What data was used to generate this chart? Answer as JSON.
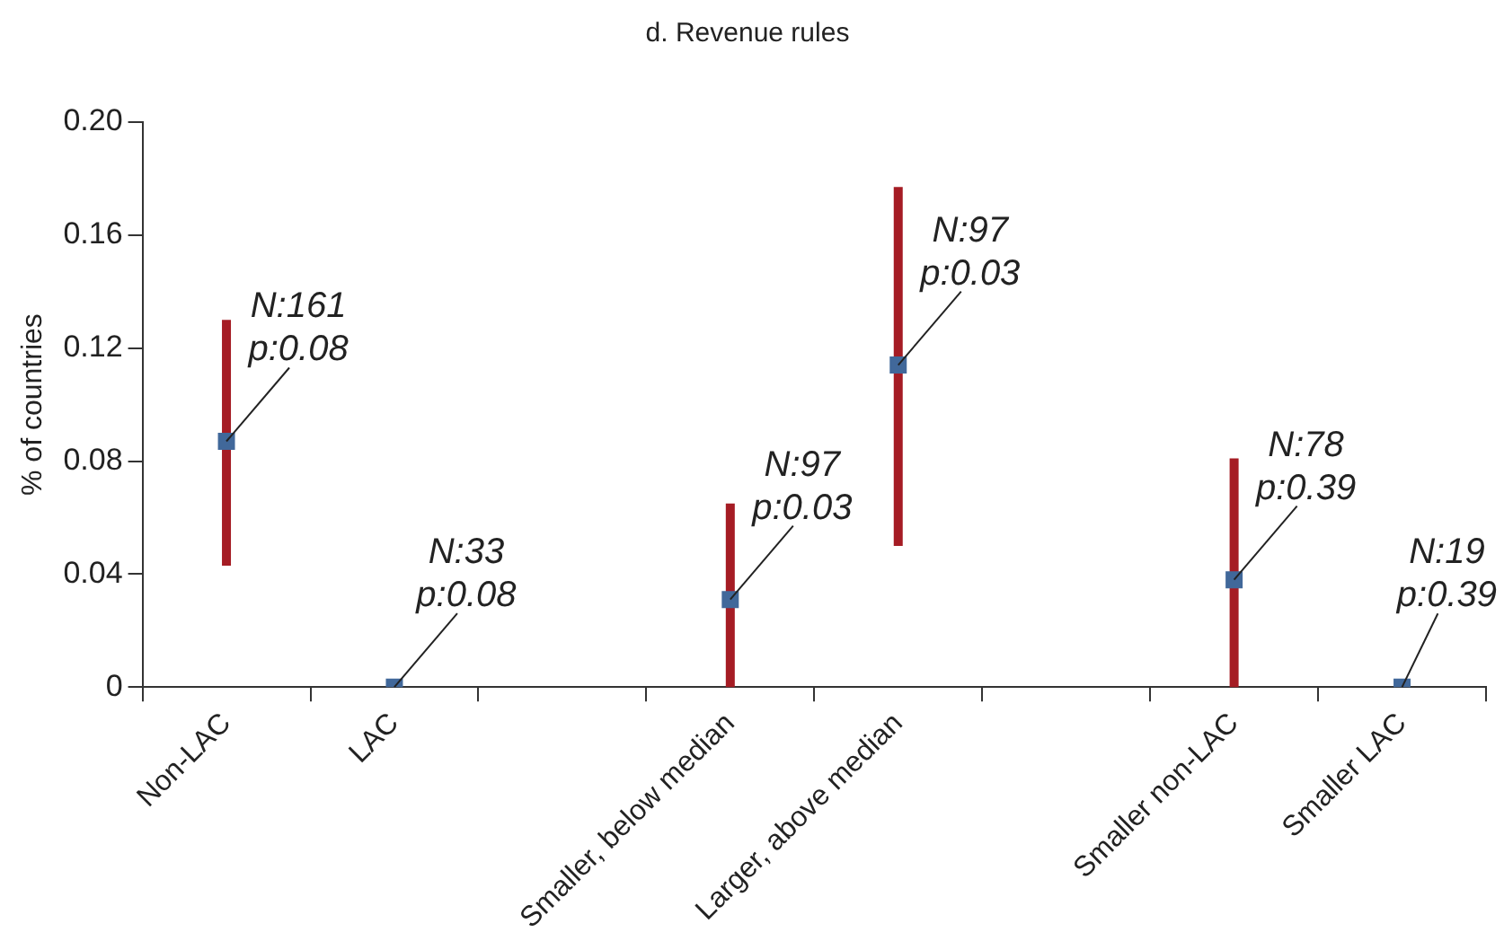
{
  "chart_data": {
    "type": "scatter",
    "title": "d. Revenue rules",
    "ylabel": "% of countries",
    "categories": [
      "Non-LAC",
      "LAC",
      null,
      "Smaller, below median",
      "Larger, above median",
      null,
      "Smaller non-LAC",
      "Smaller LAC"
    ],
    "series": [
      {
        "color": "#41689a",
        "values": [
          0.087,
          0,
          null,
          0.031,
          0.114,
          null,
          0.038,
          0
        ],
        "errors": [
          [
            0.043,
            0.13
          ],
          null,
          null,
          [
            0,
            0.065
          ],
          [
            0.05,
            0.177
          ],
          null,
          [
            0,
            0.081
          ],
          null
        ]
      }
    ],
    "ylim": [
      0,
      0.2
    ],
    "yticks": [
      0,
      0.04,
      0.08,
      0.12,
      0.16,
      {
        "value": 0.2,
        "label": "0.20"
      }
    ],
    "grid": false,
    "legend": false,
    "marker": "square",
    "annotations": [
      {
        "text": "N:161\np:0.08",
        "x": "Non-LAC",
        "y": 0.087
      },
      {
        "text": "N:33\np:0.08",
        "x": "LAC",
        "y": 0
      },
      {
        "text": "N:97\np:0.03",
        "x": "Smaller, below median",
        "y": 0.031
      },
      {
        "text": "N:97\np:0.03",
        "x": "Larger, above median",
        "y": 0.114
      },
      {
        "text": "N:78\np:0.39",
        "x": "Smaller non-LAC",
        "y": 0.038
      },
      {
        "text": "N:19\np:0.39",
        "x": "Smaller LAC",
        "y": 0
      }
    ]
  }
}
